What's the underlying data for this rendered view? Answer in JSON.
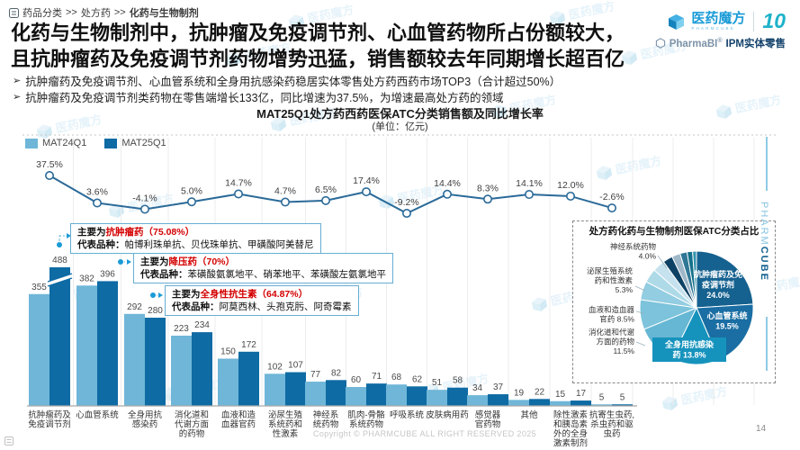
{
  "page": {
    "breadcrumb_items": [
      "药品分类",
      "处方药",
      "化药与生物制剂"
    ],
    "breadcrumb_sep": ">>",
    "title_line1": "化药与生物制剂中，抗肿瘤及免疫调节剂、心血管药物所占份额较大，",
    "title_line2": "且抗肿瘤药及免疫调节剂药物增势迅猛，销售额较去年同期增长超百亿",
    "bullet_marker": "➢",
    "bullets": [
      "抗肿瘤药及免疫调节剂、心血管系统和全身用抗感染药稳居实体零售处方药西药市场TOP3（合计超过50%）",
      "抗肿瘤药及免疫调节剂类药物在零售端增长133亿，同比增速为37.5%，为增速最高处方药的领域"
    ],
    "copyright": "Copyright © PHARMCUBE ALL RIGHT RESERVED 2025",
    "page_number": "14"
  },
  "logo": {
    "brand": "医药魔方",
    "brand_sub": "PHARMCUBE",
    "anniversary": "10",
    "product": "PharmaBI",
    "reg": "®",
    "product_suffix": "IPM实体零售",
    "brand_color": "#1a9bd7",
    "side_light": "PHARM",
    "side_bold": "CUBE",
    "watermark_text": "医药魔方"
  },
  "chart_data": {
    "type": "bar+line",
    "title": "MAT25Q1处方药西药医保ATC分类销售额及同比增长率",
    "subtitle": "(单位：亿元)",
    "unit": "亿元",
    "grid": true,
    "legend_position": "top-left",
    "categories": [
      "抗肿瘤药及免疫调节剂",
      "心血管系统",
      "全身用抗感染药",
      "消化道和代谢方面的药物",
      "血液和造血器官药",
      "泌尿生殖系统药和性激素",
      "神经系统药物",
      "肌肉-骨骼系统药物",
      "呼吸系统",
      "皮肤病用药",
      "感觉器官药物",
      "其他",
      "除性激素和胰岛素外的全身激素制剂",
      "抗寄生虫药,杀虫药和驱虫药"
    ],
    "categories_wrapped": [
      [
        "抗肿瘤药及",
        "免疫调节剂"
      ],
      [
        "心血管系统"
      ],
      [
        "全身用抗",
        "感染药"
      ],
      [
        "消化道和",
        "代谢方面",
        "的药物"
      ],
      [
        "血液和造",
        "血器官药"
      ],
      [
        "泌尿生殖",
        "系统药和",
        "性激素"
      ],
      [
        "神经系",
        "统药物"
      ],
      [
        "肌肉-骨骼",
        "系统药物"
      ],
      [
        "呼吸系统"
      ],
      [
        "皮肤病用药"
      ],
      [
        "感觉器",
        "官药物"
      ],
      [
        "其他"
      ],
      [
        "除性激素",
        "和胰岛素",
        "外的全身",
        "激素制剂"
      ],
      [
        "抗寄生虫药,",
        "杀虫药和驱",
        "虫药"
      ]
    ],
    "series": [
      {
        "name": "MAT24Q1",
        "color": "#6fb6d8",
        "values": [
          355,
          382,
          292,
          223,
          150,
          102,
          77,
          60,
          68,
          51,
          34,
          19,
          15,
          5
        ]
      },
      {
        "name": "MAT25Q1",
        "color": "#0e6ba4",
        "values": [
          488,
          396,
          280,
          234,
          172,
          107,
          82,
          71,
          62,
          58,
          37,
          22,
          17,
          5
        ]
      }
    ],
    "growth_line": {
      "name": "同比增长率",
      "color": "#2b6a99",
      "values_pct": [
        37.5,
        3.6,
        -4.1,
        5.0,
        14.7,
        4.7,
        6.5,
        17.4,
        -9.2,
        14.4,
        8.3,
        14.1,
        12.0,
        -2.6
      ],
      "labels": [
        "37.5%",
        "3.6%",
        "-4.1%",
        "5.0%",
        "14.7%",
        "4.7%",
        "6.5%",
        "17.4%",
        "-9.2%",
        "14.4%",
        "8.3%",
        "14.1%",
        "12.0%",
        "-2.6%"
      ]
    },
    "axis_break": {
      "series_index": 1,
      "category_index": 0,
      "truncated_value": 488
    }
  },
  "annotations": [
    {
      "prefix": "主要为",
      "highlight": "抗肿瘤药",
      "pct": "（75.08%）",
      "species_label": "代表品种：",
      "species": "帕博利珠单抗、贝伐珠单抗、甲磺酸阿美替尼"
    },
    {
      "prefix": "主要为",
      "highlight": "降压药",
      "pct": "（70%）",
      "species_label": "代表品种：",
      "species": "苯磺酸氨氯地平、硝苯地平、苯磺酸左氨氯地平"
    },
    {
      "prefix": "主要为",
      "highlight": "全身性抗生素",
      "pct": "（64.87%）",
      "species_label": "代表品种：",
      "species": "阿莫西林、头孢克肟、阿奇霉素"
    }
  ],
  "pie": {
    "title": "处方药化药与生物制剂医保ATC分类占比",
    "slices": [
      {
        "label": "抗肿瘤药及免疫调节剂",
        "pct": 24.0,
        "color": "#15618f",
        "label_pos": "inside",
        "label_lines": [
          "抗肿瘤药及免",
          "疫调节剂",
          "24.0%"
        ]
      },
      {
        "label": "心血管系统",
        "pct": 19.5,
        "color": "#1a6ea3",
        "label_pos": "inside",
        "label_lines": [
          "心血管系统",
          "19.5%"
        ]
      },
      {
        "label": "全身用抗感染药",
        "pct": 13.8,
        "color": "#1693bd",
        "label_pos": "chip",
        "label_lines": [
          "全身用抗感染",
          "药 13.8%"
        ]
      },
      {
        "label": "消化道和代谢方面的药物",
        "pct": 11.5,
        "color": "#66b7d4",
        "label_pos": "left",
        "label_lines": [
          "消化道和代谢",
          "方面的药物",
          "11.5%"
        ]
      },
      {
        "label": "血液和造血器官药",
        "pct": 8.5,
        "color": "#7cc3db",
        "label_pos": "left",
        "label_lines": [
          "血液和造血器",
          "官药 8.5%"
        ]
      },
      {
        "label": "泌尿生殖系统药和性激素",
        "pct": 5.3,
        "color": "#93cde1",
        "label_pos": "left",
        "label_lines": [
          "泌尿生殖系统",
          "药和性激素",
          "5.3%"
        ]
      },
      {
        "label": "神经系统药物",
        "pct": 4.0,
        "color": "#aedae8",
        "label_pos": "left",
        "label_lines": [
          "神经系统药物",
          "4.0%"
        ]
      },
      {
        "label": "",
        "pct": 3.5,
        "color": "#c5e2ee",
        "label_pos": "none",
        "label_lines": []
      },
      {
        "label": "",
        "pct": 2.8,
        "color": "#0d4265",
        "label_pos": "none",
        "label_lines": []
      },
      {
        "label": "",
        "pct": 2.4,
        "color": "#9fb8c9",
        "label_pos": "none",
        "label_lines": []
      },
      {
        "label": "",
        "pct": 2.0,
        "color": "#2f7795",
        "label_pos": "none",
        "label_lines": []
      },
      {
        "label": "",
        "pct": 1.6,
        "color": "#15718b",
        "label_pos": "none",
        "label_lines": []
      },
      {
        "label": "",
        "pct": 1.1,
        "color": "#3592ad",
        "label_pos": "none",
        "label_lines": []
      }
    ]
  }
}
